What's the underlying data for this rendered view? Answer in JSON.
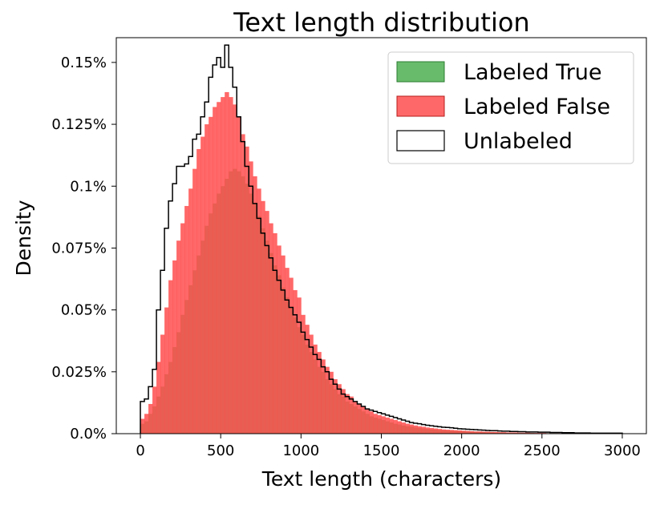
{
  "chart_data": {
    "type": "histogram",
    "title": "Text length distribution",
    "xlabel": "Text length (characters)",
    "ylabel": "Density",
    "xlim": [
      -150,
      3150
    ],
    "ylim": [
      0,
      0.16
    ],
    "y_unit": "%",
    "x_ticks": [
      0,
      500,
      1000,
      1500,
      2000,
      2500,
      3000
    ],
    "x_tick_labels": [
      "0",
      "500",
      "1000",
      "1500",
      "2000",
      "2500",
      "3000"
    ],
    "y_ticks": [
      0,
      0.025,
      0.05,
      0.075,
      0.1,
      0.125,
      0.15
    ],
    "y_tick_labels": [
      "0.0%",
      "0.025%",
      "0.05%",
      "0.075%",
      "0.1%",
      "0.125%",
      "0.15%"
    ],
    "grid": false,
    "legend_position": "top-right",
    "bin_width": 25,
    "bin_edges_start": 0,
    "series": [
      {
        "name": "Labeled True",
        "style": "filled",
        "color": "#4caf50",
        "values": [
          0.004,
          0.005,
          0.008,
          0.011,
          0.015,
          0.019,
          0.024,
          0.029,
          0.035,
          0.041,
          0.048,
          0.054,
          0.06,
          0.066,
          0.072,
          0.078,
          0.084,
          0.089,
          0.093,
          0.097,
          0.1,
          0.103,
          0.106,
          0.107,
          0.106,
          0.104,
          0.101,
          0.097,
          0.093,
          0.088,
          0.083,
          0.078,
          0.073,
          0.068,
          0.064,
          0.059,
          0.055,
          0.051,
          0.047,
          0.043,
          0.04,
          0.036,
          0.033,
          0.03,
          0.027,
          0.025,
          0.022,
          0.02,
          0.018,
          0.016,
          0.015,
          0.013,
          0.012,
          0.011,
          0.01,
          0.009,
          0.008,
          0.007,
          0.0065,
          0.006,
          0.0055,
          0.005,
          0.0045,
          0.004,
          0.0037,
          0.0033,
          0.003,
          0.0028,
          0.0025,
          0.0023,
          0.0021,
          0.0019,
          0.0017,
          0.0016,
          0.0015,
          0.0014,
          0.0013,
          0.0012,
          0.0011,
          0.001,
          0.001,
          0.0009,
          0.0008,
          0.0008,
          0.0007,
          0.0007,
          0.0006,
          0.0006,
          0.0005,
          0.0005,
          0.0005,
          0.0004,
          0.0004,
          0.0004,
          0.0003,
          0.0003,
          0.0003,
          0.0003,
          0.0002,
          0.0002,
          0.0002,
          0.0002,
          0.0002,
          0.0002,
          0.0001,
          0.0001,
          0.0001,
          0.0001,
          0.0001,
          0.0001,
          0.0001,
          0.0001,
          0.0001,
          0.0001,
          0.0001,
          0.0001,
          0.0001,
          0.0001,
          0.0001,
          0.0001
        ]
      },
      {
        "name": "Labeled False",
        "style": "filled",
        "color": "#ff4d4d",
        "values": [
          0.006,
          0.008,
          0.012,
          0.019,
          0.029,
          0.04,
          0.051,
          0.062,
          0.07,
          0.078,
          0.085,
          0.092,
          0.099,
          0.107,
          0.115,
          0.12,
          0.125,
          0.128,
          0.132,
          0.134,
          0.136,
          0.138,
          0.136,
          0.133,
          0.128,
          0.121,
          0.116,
          0.11,
          0.104,
          0.099,
          0.094,
          0.09,
          0.085,
          0.081,
          0.076,
          0.072,
          0.067,
          0.063,
          0.058,
          0.055,
          0.048,
          0.044,
          0.04,
          0.036,
          0.033,
          0.03,
          0.027,
          0.025,
          0.022,
          0.02,
          0.018,
          0.016,
          0.015,
          0.013,
          0.012,
          0.011,
          0.01,
          0.009,
          0.008,
          0.0075,
          0.007,
          0.0065,
          0.006,
          0.0055,
          0.005,
          0.0045,
          0.004,
          0.0037,
          0.0033,
          0.003,
          0.0028,
          0.0025,
          0.0023,
          0.0021,
          0.0019,
          0.0017,
          0.0016,
          0.0015,
          0.0014,
          0.0013,
          0.0012,
          0.0011,
          0.001,
          0.0009,
          0.0009,
          0.0008,
          0.0008,
          0.0007,
          0.0007,
          0.0006,
          0.0006,
          0.0005,
          0.0005,
          0.0005,
          0.0004,
          0.0004,
          0.0004,
          0.0003,
          0.0003,
          0.0003,
          0.0003,
          0.0002,
          0.0002,
          0.0002,
          0.0002,
          0.0002,
          0.0001,
          0.0001,
          0.0001,
          0.0001,
          0.0001,
          0.0001,
          0.0001,
          0.0001,
          0.0001,
          0.0001,
          0.0001,
          0.0001,
          0.0001,
          0.0001
        ]
      },
      {
        "name": "Unlabeled",
        "style": "step",
        "color": "#000000",
        "values": [
          0.013,
          0.014,
          0.019,
          0.026,
          0.05,
          0.066,
          0.083,
          0.094,
          0.101,
          0.108,
          0.108,
          0.109,
          0.112,
          0.119,
          0.121,
          0.128,
          0.134,
          0.144,
          0.149,
          0.152,
          0.148,
          0.157,
          0.148,
          0.14,
          0.128,
          0.118,
          0.108,
          0.1,
          0.093,
          0.087,
          0.081,
          0.076,
          0.071,
          0.066,
          0.062,
          0.058,
          0.054,
          0.051,
          0.048,
          0.045,
          0.041,
          0.038,
          0.035,
          0.032,
          0.03,
          0.027,
          0.025,
          0.022,
          0.02,
          0.018,
          0.016,
          0.015,
          0.014,
          0.013,
          0.012,
          0.011,
          0.01,
          0.0095,
          0.009,
          0.0085,
          0.008,
          0.0075,
          0.007,
          0.0065,
          0.006,
          0.0055,
          0.005,
          0.0045,
          0.0042,
          0.004,
          0.0037,
          0.0034,
          0.0032,
          0.003,
          0.0028,
          0.0026,
          0.0025,
          0.0024,
          0.0022,
          0.002,
          0.0019,
          0.0018,
          0.0017,
          0.0016,
          0.0015,
          0.0014,
          0.0013,
          0.0012,
          0.0012,
          0.0011,
          0.001,
          0.001,
          0.0009,
          0.0009,
          0.0008,
          0.0008,
          0.0007,
          0.0007,
          0.0007,
          0.0006,
          0.0006,
          0.0006,
          0.0005,
          0.0005,
          0.0005,
          0.0004,
          0.0004,
          0.0004,
          0.0003,
          0.0003,
          0.0003,
          0.0003,
          0.0002,
          0.0002,
          0.0002,
          0.0002,
          0.0002,
          0.0002,
          0.0002,
          0.0002
        ]
      }
    ]
  }
}
